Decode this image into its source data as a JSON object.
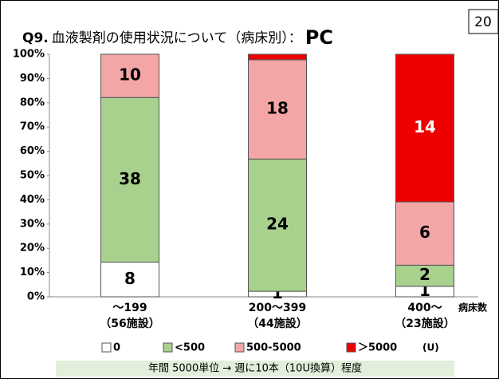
{
  "chart_data": {
    "type": "stacked_percent_bar",
    "page_number": "20",
    "title_parts": [
      "Q9.",
      "血液製剤の使用状況について（病床別）：",
      "PC"
    ],
    "categories": [
      "～199",
      "200～399",
      "400～"
    ],
    "category_notes": [
      "（56施設）",
      "（44施設）",
      "（23施設）"
    ],
    "x_label": "病床数",
    "unit": "(U)",
    "series": [
      {
        "name": "0",
        "color": "#ffffff",
        "values": [
          8,
          1,
          1
        ]
      },
      {
        "name": "<500",
        "color": "#a9d18e",
        "values": [
          38,
          24,
          2
        ]
      },
      {
        "name": "500-5000",
        "color": "#f4a6a6",
        "values": [
          10,
          18,
          6
        ]
      },
      {
        "name": "＞5000",
        "color": "#ee0000",
        "values": [
          0,
          1,
          14
        ]
      }
    ],
    "ylim": [
      0,
      100
    ],
    "yticks": [
      {
        "value": 0,
        "label": "0%"
      },
      {
        "value": 10,
        "label": "10%"
      },
      {
        "value": 20,
        "label": "20%"
      },
      {
        "value": 30,
        "label": "30%"
      },
      {
        "value": 40,
        "label": "40%"
      },
      {
        "value": 50,
        "label": "50%"
      },
      {
        "value": 60,
        "label": "60%"
      },
      {
        "value": 70,
        "label": "70%"
      },
      {
        "value": 80,
        "label": "80%"
      },
      {
        "value": 90,
        "label": "90%"
      },
      {
        "value": 100,
        "label": "100%"
      }
    ],
    "note": "年間 5000単位 → 週に10本（10U換算）程度"
  }
}
